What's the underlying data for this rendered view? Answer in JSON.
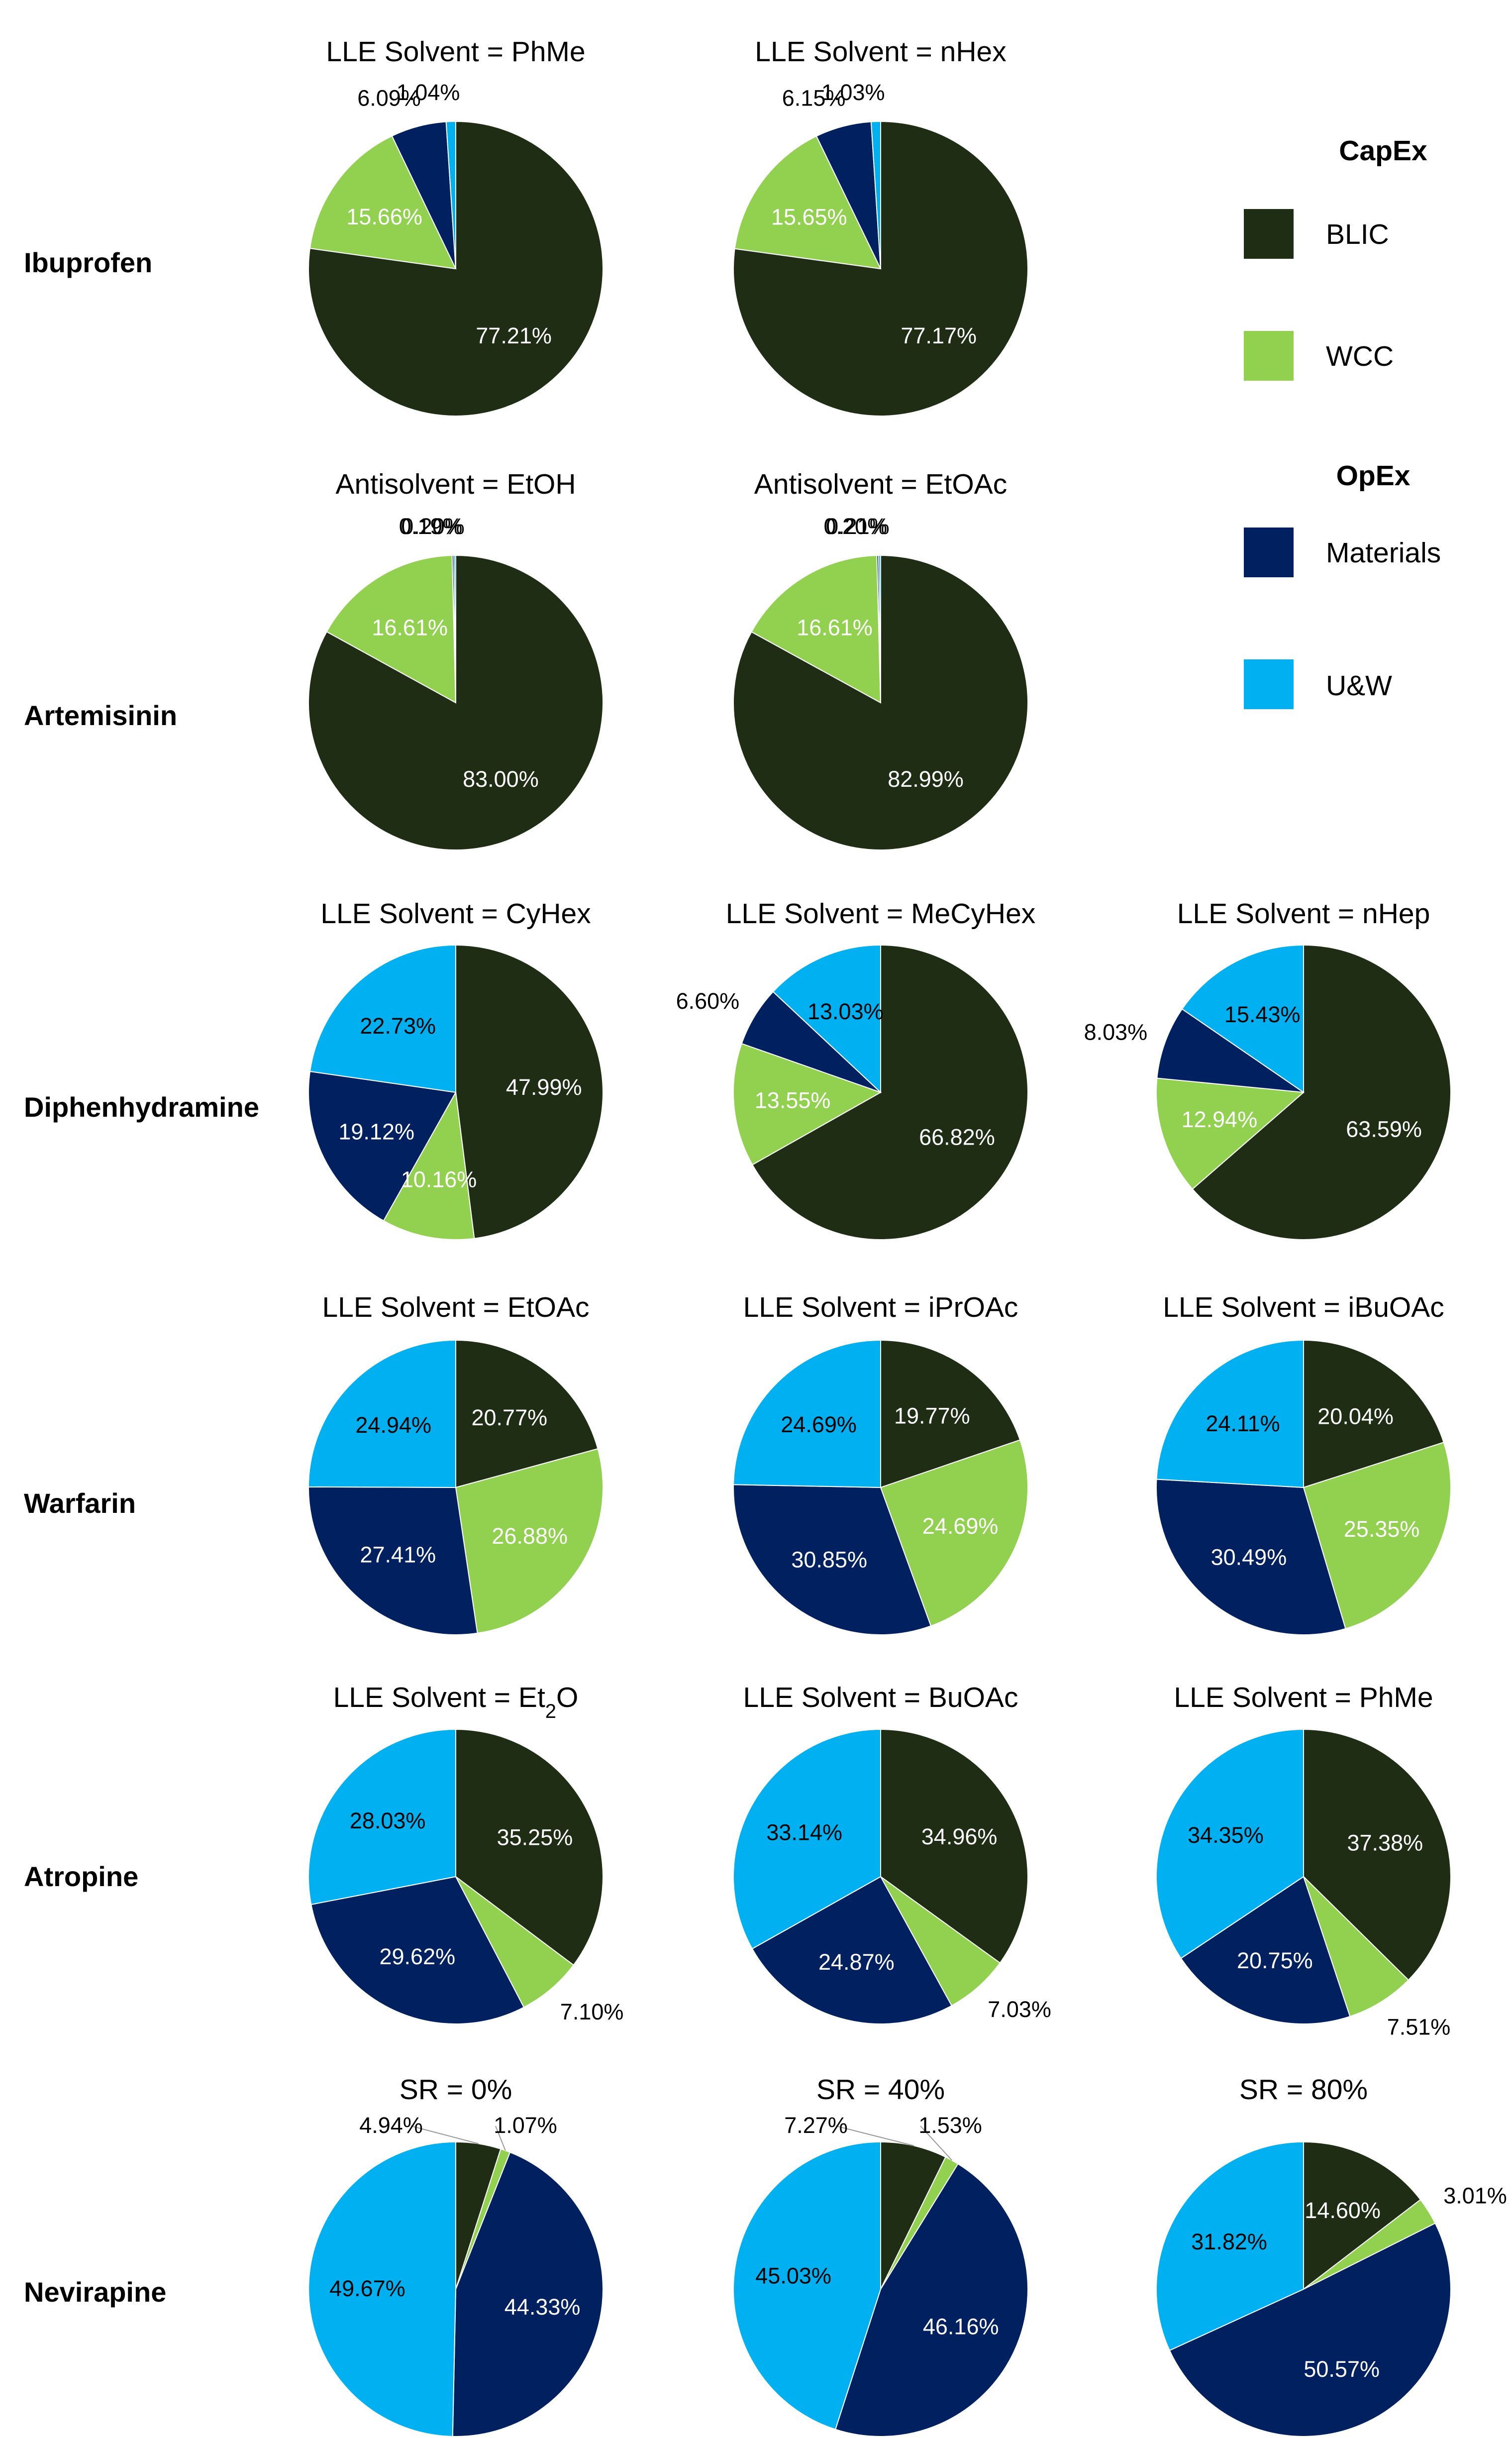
{
  "colors": {
    "BLIC": "#1f2d14",
    "WCC": "#92d050",
    "Materials": "#002060",
    "U&W": "#00b0f0"
  },
  "legend": {
    "capex_heading": "CapEx",
    "opex_heading": "OpEx",
    "items": [
      {
        "key": "BLIC",
        "label": "BLIC"
      },
      {
        "key": "WCC",
        "label": "WCC"
      },
      {
        "key": "Materials",
        "label": "Materials"
      },
      {
        "key": "U&W",
        "label": "U&W"
      }
    ]
  },
  "rows": [
    {
      "label": "Ibuprofen"
    },
    {
      "label": "Artemisinin"
    },
    {
      "label": "Diphenhydramine"
    },
    {
      "label": "Warfarin"
    },
    {
      "label": "Atropine"
    },
    {
      "label": "Nevirapine"
    }
  ],
  "chart_data": [
    {
      "type": "pie",
      "row": "Ibuprofen",
      "title": "LLE Solvent = PhMe",
      "slices": [
        {
          "category": "BLIC",
          "value": 77.21,
          "label": "77.21%"
        },
        {
          "category": "WCC",
          "value": 15.66,
          "label": "15.66%"
        },
        {
          "category": "Materials",
          "value": 6.09,
          "label": "6.09%"
        },
        {
          "category": "U&W",
          "value": 1.04,
          "label": "1.04%"
        }
      ]
    },
    {
      "type": "pie",
      "row": "Ibuprofen",
      "title": "LLE Solvent = nHex",
      "slices": [
        {
          "category": "BLIC",
          "value": 77.17,
          "label": "77.17%"
        },
        {
          "category": "WCC",
          "value": 15.65,
          "label": "15.65%"
        },
        {
          "category": "Materials",
          "value": 6.15,
          "label": "6.15%"
        },
        {
          "category": "U&W",
          "value": 1.03,
          "label": "1.03%"
        }
      ]
    },
    {
      "type": "pie",
      "row": "Artemisinin",
      "title": "Antisolvent = EtOH",
      "slices": [
        {
          "category": "BLIC",
          "value": 83.0,
          "label": "83.00%"
        },
        {
          "category": "WCC",
          "value": 16.61,
          "label": "16.61%"
        },
        {
          "category": "Materials",
          "value": 0.19,
          "label": "0.19%"
        },
        {
          "category": "U&W",
          "value": 0.2,
          "label": "0.20%"
        }
      ]
    },
    {
      "type": "pie",
      "row": "Artemisinin",
      "title": "Antisolvent = EtOAc",
      "slices": [
        {
          "category": "BLIC",
          "value": 82.99,
          "label": "82.99%"
        },
        {
          "category": "WCC",
          "value": 16.61,
          "label": "16.61%"
        },
        {
          "category": "Materials",
          "value": 0.2,
          "label": "0.20%"
        },
        {
          "category": "U&W",
          "value": 0.21,
          "label": "0.21%"
        }
      ]
    },
    {
      "type": "pie",
      "row": "Diphenhydramine",
      "title": "LLE Solvent = CyHex",
      "slices": [
        {
          "category": "BLIC",
          "value": 47.99,
          "label": "47.99%"
        },
        {
          "category": "WCC",
          "value": 10.16,
          "label": "10.16%"
        },
        {
          "category": "Materials",
          "value": 19.12,
          "label": "19.12%"
        },
        {
          "category": "U&W",
          "value": 22.73,
          "label": "22.73%"
        }
      ]
    },
    {
      "type": "pie",
      "row": "Diphenhydramine",
      "title": "LLE Solvent = MeCyHex",
      "slices": [
        {
          "category": "BLIC",
          "value": 66.82,
          "label": "66.82%"
        },
        {
          "category": "WCC",
          "value": 13.55,
          "label": "13.55%"
        },
        {
          "category": "Materials",
          "value": 6.6,
          "label": "6.60%"
        },
        {
          "category": "U&W",
          "value": 13.03,
          "label": "13.03%"
        }
      ]
    },
    {
      "type": "pie",
      "row": "Diphenhydramine",
      "title": "LLE Solvent = nHep",
      "slices": [
        {
          "category": "BLIC",
          "value": 63.59,
          "label": "63.59%"
        },
        {
          "category": "WCC",
          "value": 12.94,
          "label": "12.94%"
        },
        {
          "category": "Materials",
          "value": 8.03,
          "label": "8.03%"
        },
        {
          "category": "U&W",
          "value": 15.43,
          "label": "15.43%"
        }
      ]
    },
    {
      "type": "pie",
      "row": "Warfarin",
      "title": "LLE Solvent = EtOAc",
      "slices": [
        {
          "category": "BLIC",
          "value": 20.77,
          "label": "20.77%"
        },
        {
          "category": "WCC",
          "value": 26.88,
          "label": "26.88%"
        },
        {
          "category": "Materials",
          "value": 27.41,
          "label": "27.41%"
        },
        {
          "category": "U&W",
          "value": 24.94,
          "label": "24.94%"
        }
      ]
    },
    {
      "type": "pie",
      "row": "Warfarin",
      "title": "LLE Solvent = iPrOAc",
      "slices": [
        {
          "category": "BLIC",
          "value": 19.77,
          "label": "19.77%"
        },
        {
          "category": "WCC",
          "value": 24.69,
          "label": "24.69%"
        },
        {
          "category": "Materials",
          "value": 30.85,
          "label": "30.85%"
        },
        {
          "category": "U&W",
          "value": 24.69,
          "label": "24.69%"
        }
      ]
    },
    {
      "type": "pie",
      "row": "Warfarin",
      "title": "LLE Solvent = iBuOAc",
      "slices": [
        {
          "category": "BLIC",
          "value": 20.04,
          "label": "20.04%"
        },
        {
          "category": "WCC",
          "value": 25.35,
          "label": "25.35%"
        },
        {
          "category": "Materials",
          "value": 30.49,
          "label": "30.49%"
        },
        {
          "category": "U&W",
          "value": 24.11,
          "label": "24.11%"
        }
      ]
    },
    {
      "type": "pie",
      "row": "Atropine",
      "title": "LLE Solvent = Et",
      "title_sub": "2",
      "title_tail": "O",
      "slices": [
        {
          "category": "BLIC",
          "value": 35.25,
          "label": "35.25%"
        },
        {
          "category": "WCC",
          "value": 7.1,
          "label": "7.10%"
        },
        {
          "category": "Materials",
          "value": 29.62,
          "label": "29.62%"
        },
        {
          "category": "U&W",
          "value": 28.03,
          "label": "28.03%"
        }
      ]
    },
    {
      "type": "pie",
      "row": "Atropine",
      "title": "LLE Solvent = BuOAc",
      "slices": [
        {
          "category": "BLIC",
          "value": 34.96,
          "label": "34.96%"
        },
        {
          "category": "WCC",
          "value": 7.03,
          "label": "7.03%"
        },
        {
          "category": "Materials",
          "value": 24.87,
          "label": "24.87%"
        },
        {
          "category": "U&W",
          "value": 33.14,
          "label": "33.14%"
        }
      ]
    },
    {
      "type": "pie",
      "row": "Atropine",
      "title": "LLE Solvent = PhMe",
      "slices": [
        {
          "category": "BLIC",
          "value": 37.38,
          "label": "37.38%"
        },
        {
          "category": "WCC",
          "value": 7.51,
          "label": "7.51%"
        },
        {
          "category": "Materials",
          "value": 20.75,
          "label": "20.75%"
        },
        {
          "category": "U&W",
          "value": 34.35,
          "label": "34.35%"
        }
      ]
    },
    {
      "type": "pie",
      "row": "Nevirapine",
      "title": "SR = 0%",
      "slices": [
        {
          "category": "BLIC",
          "value": 4.94,
          "label": "4.94%"
        },
        {
          "category": "WCC",
          "value": 1.07,
          "label": "1.07%"
        },
        {
          "category": "Materials",
          "value": 44.33,
          "label": "44.33%"
        },
        {
          "category": "U&W",
          "value": 49.67,
          "label": "49.67%"
        }
      ]
    },
    {
      "type": "pie",
      "row": "Nevirapine",
      "title": "SR = 40%",
      "slices": [
        {
          "category": "BLIC",
          "value": 7.27,
          "label": "7.27%"
        },
        {
          "category": "WCC",
          "value": 1.53,
          "label": "1.53%"
        },
        {
          "category": "Materials",
          "value": 46.16,
          "label": "46.16%"
        },
        {
          "category": "U&W",
          "value": 45.03,
          "label": "45.03%"
        }
      ]
    },
    {
      "type": "pie",
      "row": "Nevirapine",
      "title": "SR = 80%",
      "slices": [
        {
          "category": "BLIC",
          "value": 14.6,
          "label": "14.60%"
        },
        {
          "category": "WCC",
          "value": 3.01,
          "label": "3.01%"
        },
        {
          "category": "Materials",
          "value": 50.57,
          "label": "50.57%"
        },
        {
          "category": "U&W",
          "value": 31.82,
          "label": "31.82%"
        }
      ]
    }
  ]
}
